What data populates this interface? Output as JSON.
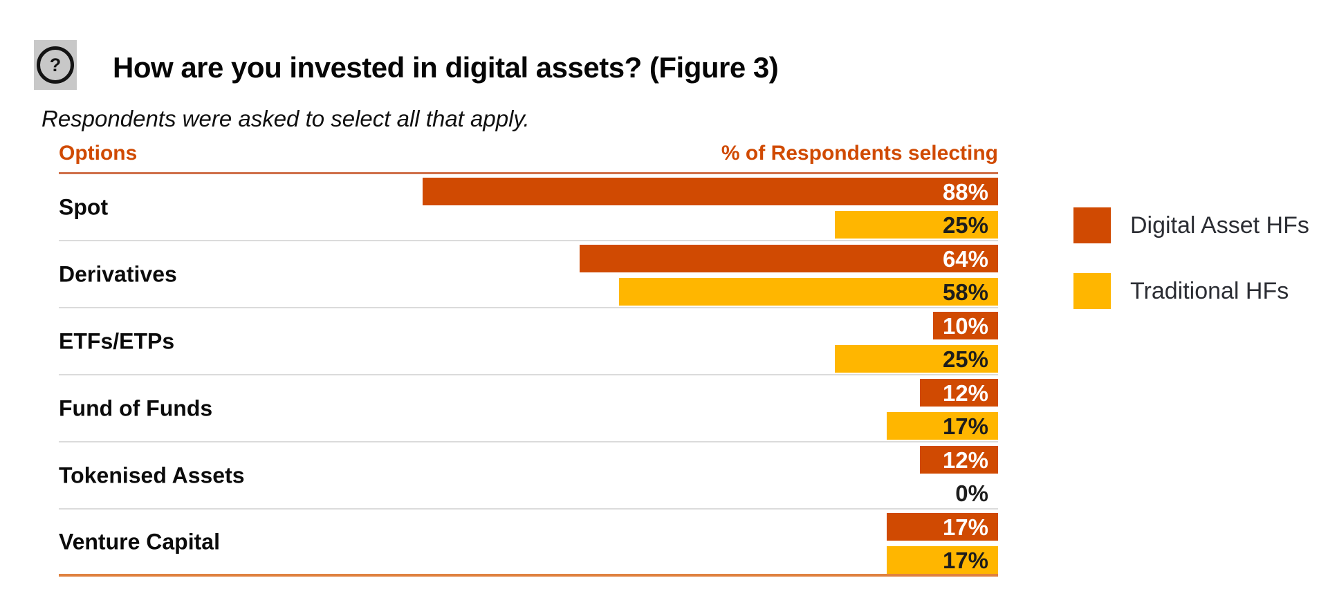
{
  "figure": {
    "title": "How are you invested in digital assets? (Figure 3)",
    "subtitle": "Respondents were asked to select all that apply.",
    "question_icon_glyph": "?"
  },
  "table_header": {
    "left": "Options",
    "right": "% of Respondents selecting"
  },
  "legend": {
    "items": [
      {
        "label": "Digital Asset HFs",
        "color": "#d04a02"
      },
      {
        "label": "Traditional HFs",
        "color": "#ffb600"
      }
    ]
  },
  "chart_data": {
    "type": "bar",
    "orientation": "horizontal",
    "title": "How are you invested in digital assets? (Figure 3)",
    "subtitle": "Respondents were asked to select all that apply.",
    "categories": [
      "Spot",
      "Derivatives",
      "ETFs/ETPs",
      "Fund of Funds",
      "Tokenised Assets",
      "Venture Capital"
    ],
    "series": [
      {
        "name": "Digital Asset HFs",
        "color": "#d04a02",
        "label_color": "#ffffff",
        "values": [
          88,
          64,
          10,
          12,
          12,
          17
        ]
      },
      {
        "name": "Traditional HFs",
        "color": "#ffb600",
        "label_color": "#1d1d1d",
        "values": [
          25,
          58,
          25,
          17,
          0,
          17
        ]
      }
    ],
    "value_format": "percent",
    "xlim": [
      0,
      100
    ],
    "grid": false,
    "legend_position": "right",
    "value_labels": [
      "88%",
      "25%",
      "64%",
      "58%",
      "10%",
      "25%",
      "12%",
      "17%",
      "12%",
      "0%",
      "17%",
      "17%"
    ]
  },
  "colors": {
    "bar_digital": "#d04a02",
    "bar_traditional": "#ffb600",
    "header_text": "#d04a02",
    "header_rule": "#cf6f48",
    "bottom_rule": "#df813f",
    "row_separator": "#dbdbdb",
    "icon_box": "#c8c8c8"
  }
}
